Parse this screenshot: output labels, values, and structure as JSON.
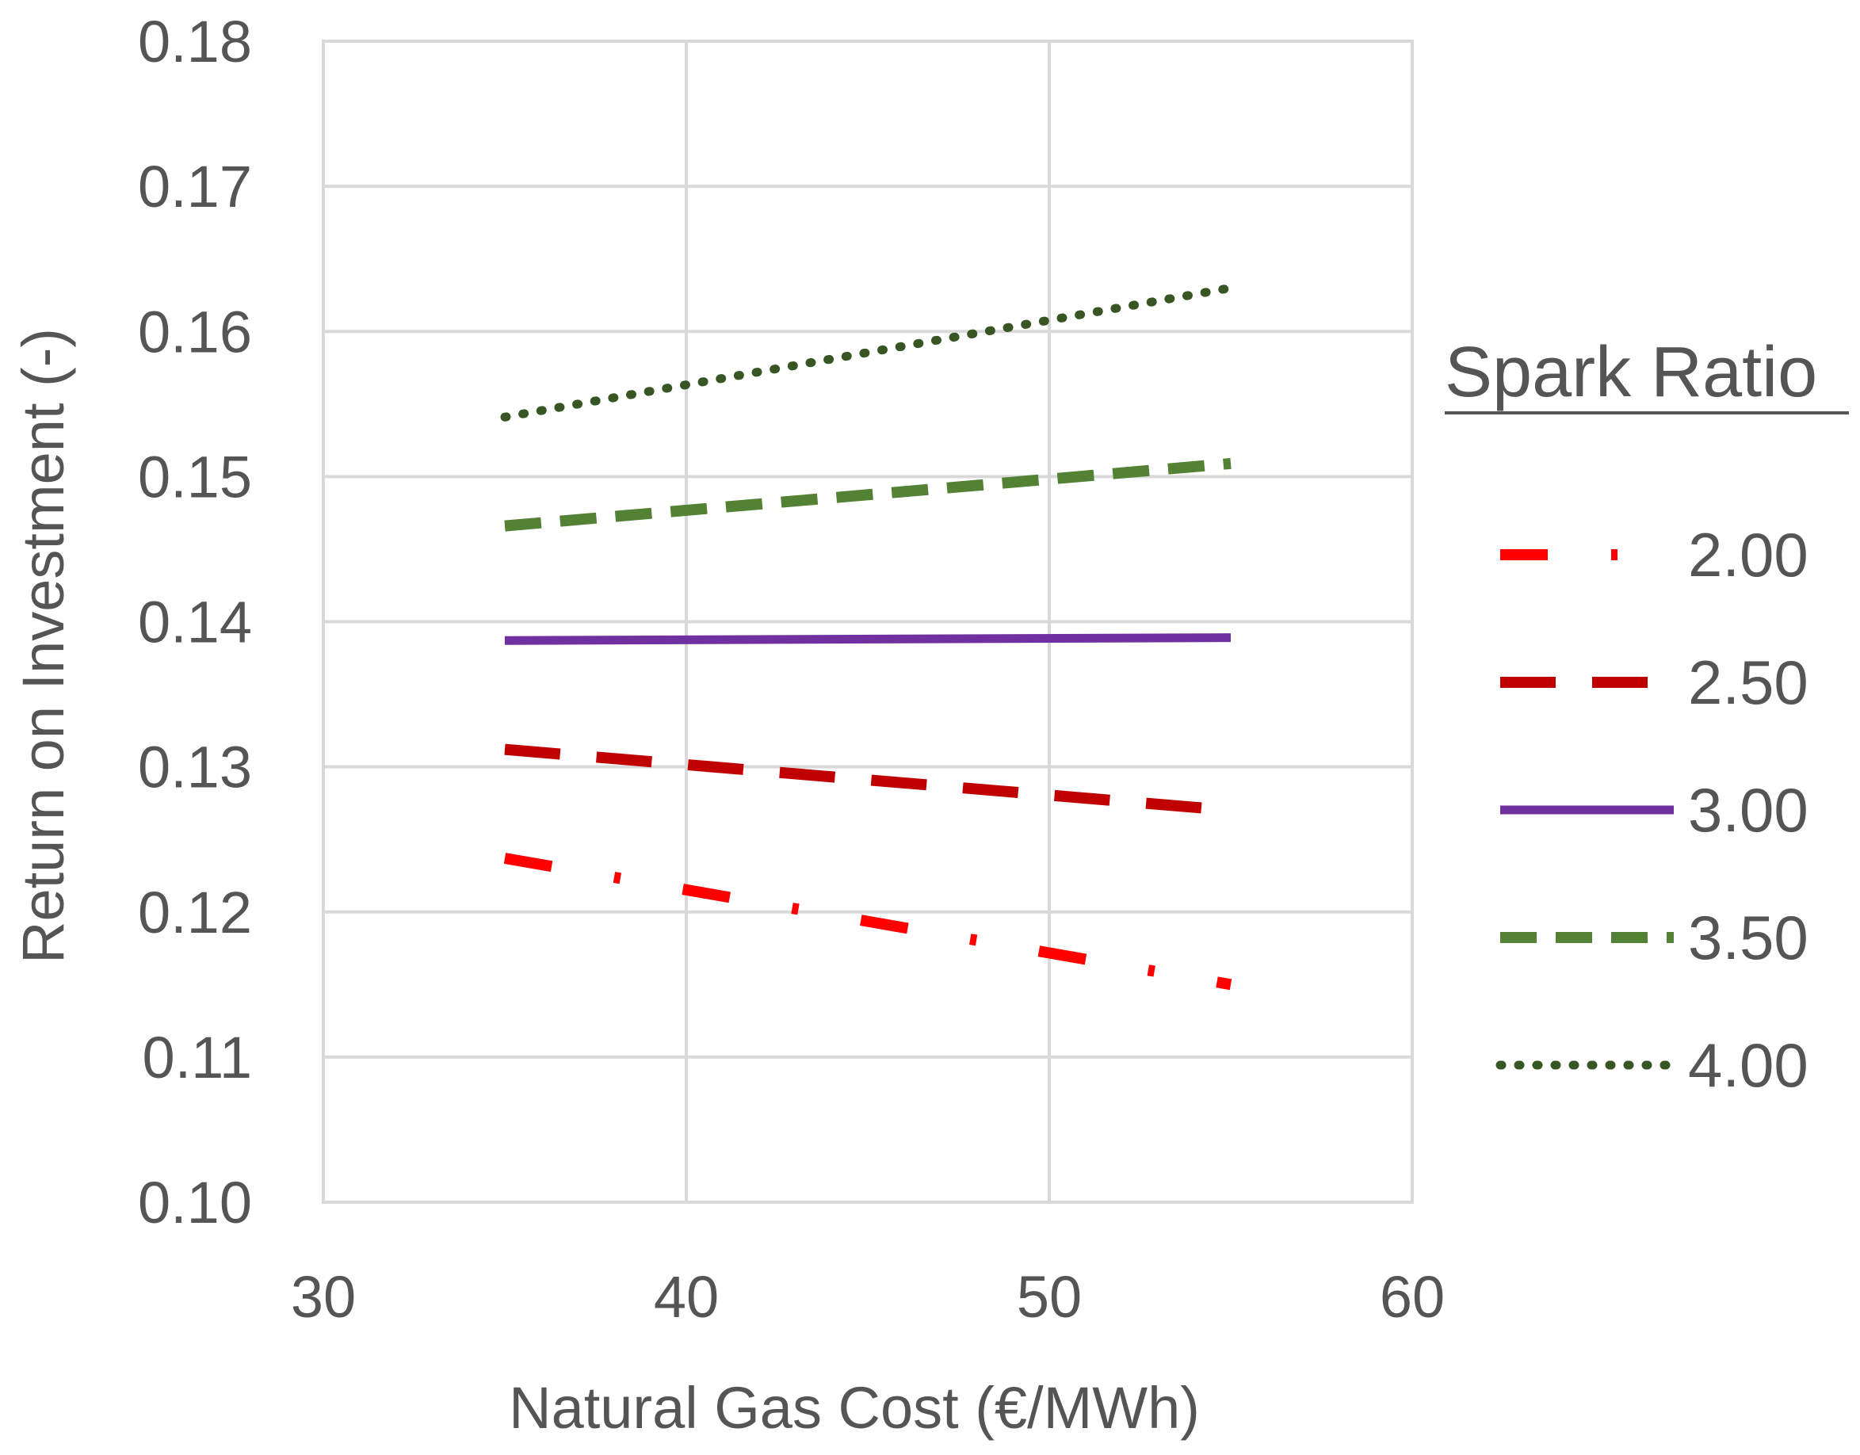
{
  "chart_data": {
    "type": "line",
    "title": "",
    "xlabel": "Natural Gas Cost (€/MWh)",
    "ylabel": "Return on Investment (-)",
    "xlim": [
      30,
      60
    ],
    "ylim": [
      0.1,
      0.18
    ],
    "x_ticks": [
      "30",
      "40",
      "50",
      "60"
    ],
    "y_ticks": [
      "0.10",
      "0.11",
      "0.12",
      "0.13",
      "0.14",
      "0.15",
      "0.16",
      "0.17",
      "0.18"
    ],
    "grid": true,
    "legend_title": "Spark Ratio",
    "legend_position": "right",
    "x": [
      35,
      55
    ],
    "series": [
      {
        "name": "2.00",
        "values": [
          0.1237,
          0.115
        ],
        "color": "#ff0000",
        "style": "dash-dot"
      },
      {
        "name": "2.50",
        "values": [
          0.1312,
          0.127
        ],
        "color": "#c00000",
        "style": "long-dash"
      },
      {
        "name": "3.00",
        "values": [
          0.1387,
          0.1389
        ],
        "color": "#7030a0",
        "style": "solid"
      },
      {
        "name": "3.50",
        "values": [
          0.1466,
          0.1509
        ],
        "color": "#548235",
        "style": "dash"
      },
      {
        "name": "4.00",
        "values": [
          0.1541,
          0.163
        ],
        "color": "#375623",
        "style": "dot"
      }
    ]
  }
}
